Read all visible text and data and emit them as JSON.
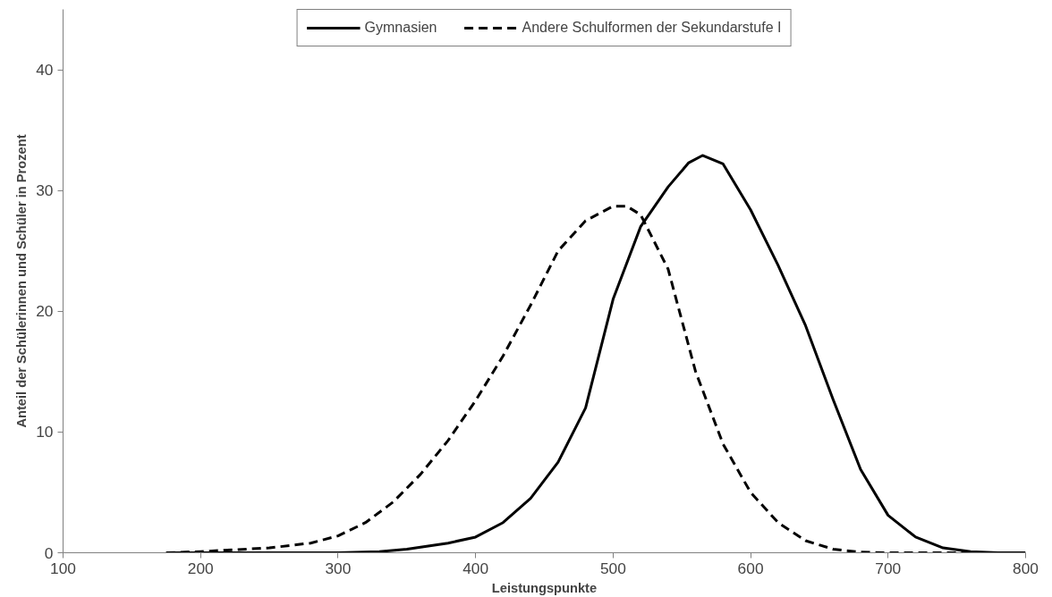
{
  "chart_data": {
    "type": "line",
    "xlabel": "Leistungspunkte",
    "ylabel": "Anteil der Schülerinnen und Schüler in Prozent",
    "xlim": [
      100,
      800
    ],
    "xticks": [
      100,
      200,
      300,
      400,
      500,
      600,
      700,
      800
    ],
    "ylim": [
      0,
      45
    ],
    "yticks": [
      0,
      10,
      20,
      30,
      40
    ],
    "grid": false,
    "legend": "top",
    "marker": "none",
    "series": [
      {
        "name": "Gymnasien",
        "color": "#000000",
        "line_style": "solid",
        "x": [
          175,
          250,
          300,
          330,
          350,
          380,
          400,
          420,
          440,
          460,
          480,
          500,
          520,
          540,
          555,
          565,
          580,
          600,
          620,
          640,
          660,
          680,
          700,
          720,
          740,
          760,
          780,
          800
        ],
        "values": [
          0,
          0,
          0,
          0.1,
          0.3,
          0.8,
          1.3,
          2.5,
          4.5,
          7.5,
          12,
          21,
          27,
          30.3,
          32.3,
          32.9,
          32.2,
          28.4,
          23.8,
          18.8,
          12.7,
          6.9,
          3.1,
          1.3,
          0.4,
          0.1,
          0,
          0
        ]
      },
      {
        "name": "Andere Schulformen der Sekundarstufe I",
        "color": "#000000",
        "line_style": "dashed",
        "x": [
          175,
          200,
          250,
          280,
          300,
          320,
          340,
          360,
          380,
          400,
          420,
          440,
          460,
          480,
          500,
          510,
          520,
          540,
          560,
          580,
          600,
          620,
          640,
          660,
          680,
          700,
          760
        ],
        "values": [
          0,
          0.1,
          0.4,
          0.8,
          1.4,
          2.5,
          4.2,
          6.5,
          9.3,
          12.6,
          16.3,
          20.5,
          25,
          27.5,
          28.7,
          28.7,
          28,
          23.5,
          15,
          9,
          5,
          2.5,
          1,
          0.3,
          0.05,
          0,
          0
        ]
      }
    ]
  }
}
